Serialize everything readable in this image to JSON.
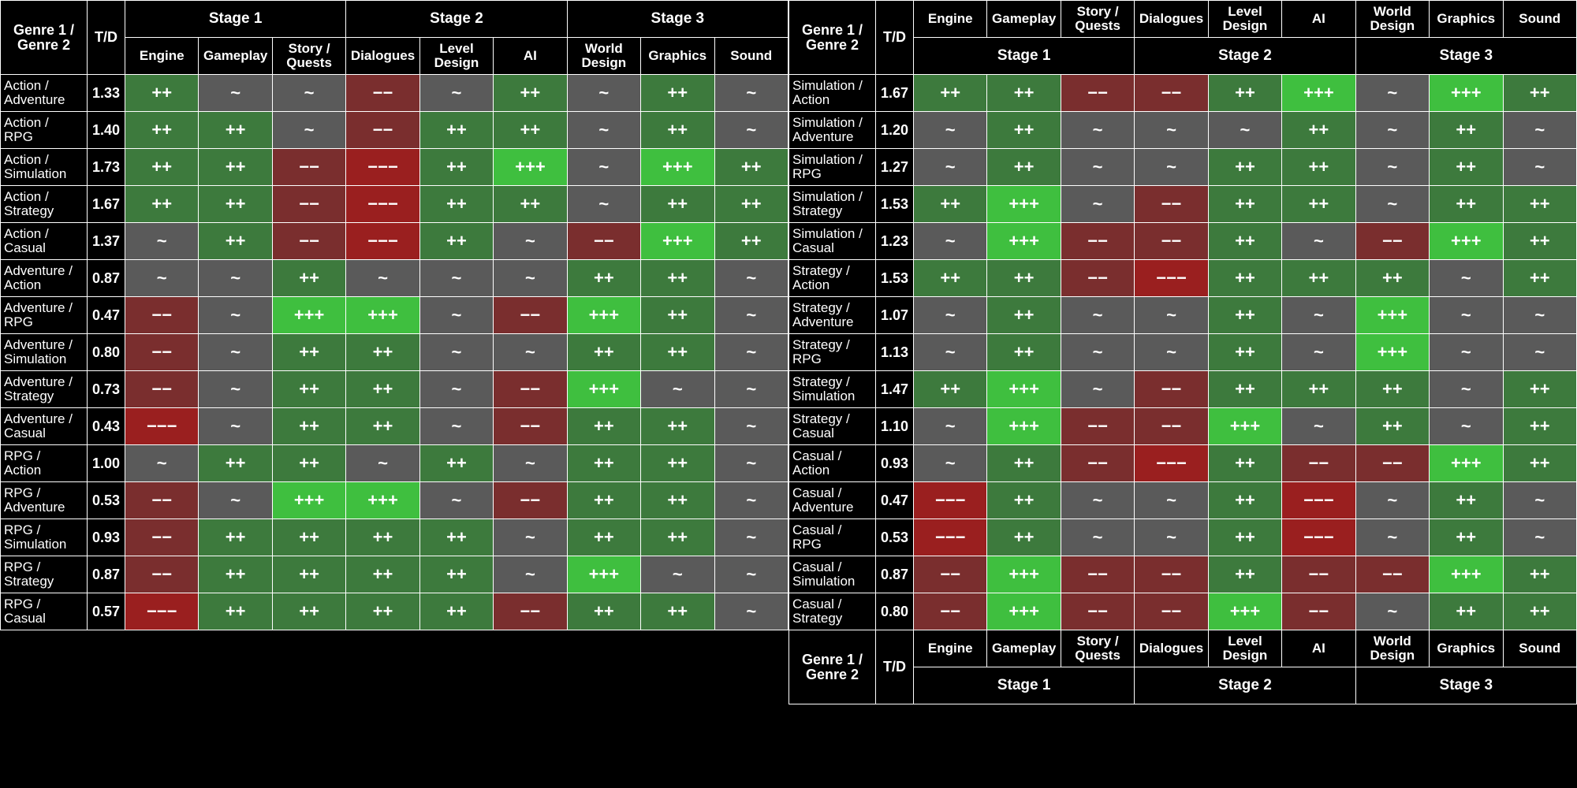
{
  "colors": {
    "background": "#000000",
    "border": "#ffffff",
    "text": "#ffffff",
    "header_bg": "#000000",
    "ratings": {
      "+++": "#3fbf3f",
      "++": "#3d7a3d",
      "~": "#5a5a5a",
      "--": "#7a2e2e",
      "---": "#9a1f1f"
    }
  },
  "headers": {
    "genre": "Genre 1 /\nGenre 2",
    "td": "T/D",
    "stages": [
      "Stage 1",
      "Stage 2",
      "Stage 3"
    ],
    "columns": [
      "Engine",
      "Gameplay",
      "Story /\nQuests",
      "Dialogues",
      "Level\nDesign",
      "AI",
      "World\nDesign",
      "Graphics",
      "Sound"
    ]
  },
  "left_rows": [
    {
      "genre": "Action /\nAdventure",
      "td": "1.33",
      "cells": [
        "++",
        "~",
        "~",
        "--",
        "~",
        "++",
        "~",
        "++",
        "~"
      ]
    },
    {
      "genre": "Action /\nRPG",
      "td": "1.40",
      "cells": [
        "++",
        "++",
        "~",
        "--",
        "++",
        "++",
        "~",
        "++",
        "~"
      ]
    },
    {
      "genre": "Action /\nSimulation",
      "td": "1.73",
      "cells": [
        "++",
        "++",
        "--",
        "---",
        "++",
        "+++",
        "~",
        "+++",
        "++"
      ]
    },
    {
      "genre": "Action /\nStrategy",
      "td": "1.67",
      "cells": [
        "++",
        "++",
        "--",
        "---",
        "++",
        "++",
        "~",
        "++",
        "++"
      ]
    },
    {
      "genre": "Action /\nCasual",
      "td": "1.37",
      "cells": [
        "~",
        "++",
        "--",
        "---",
        "++",
        "~",
        "--",
        "+++",
        "++"
      ]
    },
    {
      "genre": "Adventure /\nAction",
      "td": "0.87",
      "cells": [
        "~",
        "~",
        "++",
        "~",
        "~",
        "~",
        "++",
        "++",
        "~"
      ]
    },
    {
      "genre": "Adventure /\nRPG",
      "td": "0.47",
      "cells": [
        "--",
        "~",
        "+++",
        "+++",
        "~",
        "--",
        "+++",
        "++",
        "~"
      ]
    },
    {
      "genre": "Adventure /\nSimulation",
      "td": "0.80",
      "cells": [
        "--",
        "~",
        "++",
        "++",
        "~",
        "~",
        "++",
        "++",
        "~"
      ]
    },
    {
      "genre": "Adventure /\nStrategy",
      "td": "0.73",
      "cells": [
        "--",
        "~",
        "++",
        "++",
        "~",
        "--",
        "+++",
        "~",
        "~"
      ]
    },
    {
      "genre": "Adventure /\nCasual",
      "td": "0.43",
      "cells": [
        "---",
        "~",
        "++",
        "++",
        "~",
        "--",
        "++",
        "++",
        "~"
      ]
    },
    {
      "genre": "RPG /\nAction",
      "td": "1.00",
      "cells": [
        "~",
        "++",
        "++",
        "~",
        "++",
        "~",
        "++",
        "++",
        "~"
      ]
    },
    {
      "genre": "RPG /\nAdventure",
      "td": "0.53",
      "cells": [
        "--",
        "~",
        "+++",
        "+++",
        "~",
        "--",
        "++",
        "++",
        "~"
      ]
    },
    {
      "genre": "RPG /\nSimulation",
      "td": "0.93",
      "cells": [
        "--",
        "++",
        "++",
        "++",
        "++",
        "~",
        "++",
        "++",
        "~"
      ]
    },
    {
      "genre": "RPG /\nStrategy",
      "td": "0.87",
      "cells": [
        "--",
        "++",
        "++",
        "++",
        "++",
        "~",
        "+++",
        "~",
        "~"
      ]
    },
    {
      "genre": "RPG /\nCasual",
      "td": "0.57",
      "cells": [
        "---",
        "++",
        "++",
        "++",
        "++",
        "--",
        "++",
        "++",
        "~"
      ]
    }
  ],
  "right_rows": [
    {
      "genre": "Simulation /\nAction",
      "td": "1.67",
      "cells": [
        "++",
        "++",
        "--",
        "--",
        "++",
        "+++",
        "~",
        "+++",
        "++"
      ]
    },
    {
      "genre": "Simulation /\nAdventure",
      "td": "1.20",
      "cells": [
        "~",
        "++",
        "~",
        "~",
        "~",
        "++",
        "~",
        "++",
        "~"
      ]
    },
    {
      "genre": "Simulation /\nRPG",
      "td": "1.27",
      "cells": [
        "~",
        "++",
        "~",
        "~",
        "++",
        "++",
        "~",
        "++",
        "~"
      ]
    },
    {
      "genre": "Simulation /\nStrategy",
      "td": "1.53",
      "cells": [
        "++",
        "+++",
        "~",
        "--",
        "++",
        "++",
        "~",
        "++",
        "++"
      ]
    },
    {
      "genre": "Simulation /\nCasual",
      "td": "1.23",
      "cells": [
        "~",
        "+++",
        "--",
        "--",
        "++",
        "~",
        "--",
        "+++",
        "++"
      ]
    },
    {
      "genre": "Strategy /\nAction",
      "td": "1.53",
      "cells": [
        "++",
        "++",
        "--",
        "---",
        "++",
        "++",
        "++",
        "~",
        "++"
      ]
    },
    {
      "genre": "Strategy /\nAdventure",
      "td": "1.07",
      "cells": [
        "~",
        "++",
        "~",
        "~",
        "++",
        "~",
        "+++",
        "~",
        "~"
      ]
    },
    {
      "genre": "Strategy /\nRPG",
      "td": "1.13",
      "cells": [
        "~",
        "++",
        "~",
        "~",
        "++",
        "~",
        "+++",
        "~",
        "~"
      ]
    },
    {
      "genre": "Strategy /\nSimulation",
      "td": "1.47",
      "cells": [
        "++",
        "+++",
        "~",
        "--",
        "++",
        "++",
        "++",
        "~",
        "++"
      ]
    },
    {
      "genre": "Strategy /\nCasual",
      "td": "1.10",
      "cells": [
        "~",
        "+++",
        "--",
        "--",
        "+++",
        "~",
        "++",
        "~",
        "++"
      ]
    },
    {
      "genre": "Casual /\nAction",
      "td": "0.93",
      "cells": [
        "~",
        "++",
        "--",
        "---",
        "++",
        "--",
        "--",
        "+++",
        "++"
      ]
    },
    {
      "genre": "Casual /\nAdventure",
      "td": "0.47",
      "cells": [
        "---",
        "++",
        "~",
        "~",
        "++",
        "---",
        "~",
        "++",
        "~"
      ]
    },
    {
      "genre": "Casual /\nRPG",
      "td": "0.53",
      "cells": [
        "---",
        "++",
        "~",
        "~",
        "++",
        "---",
        "~",
        "++",
        "~"
      ]
    },
    {
      "genre": "Casual /\nSimulation",
      "td": "0.87",
      "cells": [
        "--",
        "+++",
        "--",
        "--",
        "++",
        "--",
        "--",
        "+++",
        "++"
      ]
    },
    {
      "genre": "Casual /\nStrategy",
      "td": "0.80",
      "cells": [
        "--",
        "+++",
        "--",
        "--",
        "+++",
        "--",
        "~",
        "++",
        "++"
      ]
    }
  ]
}
